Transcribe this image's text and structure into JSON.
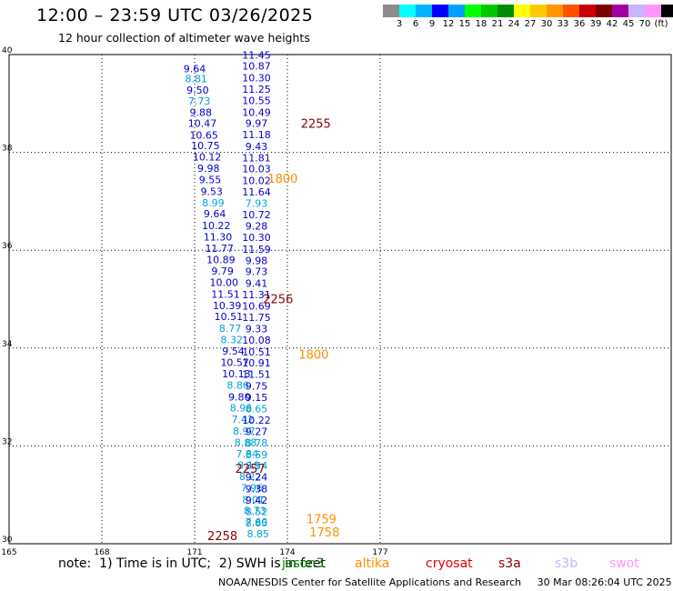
{
  "header": {
    "title": "12:00 – 23:59 UTC 03/26/2025",
    "subtitle": "12 hour collection of altimeter wave heights"
  },
  "legend": {
    "colors": [
      "#8c8c8c",
      "#00ffff",
      "#00b4ff",
      "#0000ff",
      "#00a0ff",
      "#00ff00",
      "#00c800",
      "#008c00",
      "#ffff00",
      "#ffc800",
      "#ff9600",
      "#ff5000",
      "#c80000",
      "#7d0000",
      "#a000a0",
      "#c8b4ff",
      "#ff96ff",
      "#000000"
    ],
    "labels": [
      "3",
      "6",
      "9",
      "12",
      "15",
      "18",
      "21",
      "24",
      "27",
      "30",
      "33",
      "36",
      "39",
      "42",
      "45",
      "70",
      "(ft)"
    ]
  },
  "map": {
    "lat_range": [
      30,
      40
    ],
    "lon_range": [
      165,
      178
    ],
    "lat_ticks": [
      "30",
      "32",
      "34",
      "36",
      "38",
      "40"
    ],
    "lon_ticks": [
      "165",
      "168",
      "171",
      "174",
      "177"
    ],
    "grid": "dotted"
  },
  "observations": [
    {
      "v": "9.64",
      "c": "#0000cc",
      "lon": 171.0,
      "lat": 39.64
    },
    {
      "v": "8.81",
      "c": "#00a0dc",
      "lon": 171.05,
      "lat": 39.43
    },
    {
      "v": "9.50",
      "c": "#0000cc",
      "lon": 171.1,
      "lat": 39.2
    },
    {
      "v": "7.73",
      "c": "#00a0dc",
      "lon": 171.15,
      "lat": 38.98
    },
    {
      "v": "9.88",
      "c": "#0000cc",
      "lon": 171.2,
      "lat": 38.75
    },
    {
      "v": "10.47",
      "c": "#0000cc",
      "lon": 171.25,
      "lat": 38.52
    },
    {
      "v": "10.65",
      "c": "#0000cc",
      "lon": 171.3,
      "lat": 38.28
    },
    {
      "v": "10.75",
      "c": "#0000cc",
      "lon": 171.35,
      "lat": 38.07
    },
    {
      "v": "10.12",
      "c": "#0000cc",
      "lon": 171.4,
      "lat": 37.83
    },
    {
      "v": "9.98",
      "c": "#0000cc",
      "lon": 171.45,
      "lat": 37.6
    },
    {
      "v": "9.55",
      "c": "#0000cc",
      "lon": 171.5,
      "lat": 37.37
    },
    {
      "v": "9.53",
      "c": "#0000cc",
      "lon": 171.55,
      "lat": 37.13
    },
    {
      "v": "8.99",
      "c": "#00a0dc",
      "lon": 171.6,
      "lat": 36.9
    },
    {
      "v": "9.64",
      "c": "#0000cc",
      "lon": 171.65,
      "lat": 36.67
    },
    {
      "v": "10.22",
      "c": "#0000cc",
      "lon": 171.7,
      "lat": 36.43
    },
    {
      "v": "11.30",
      "c": "#0000cc",
      "lon": 171.75,
      "lat": 36.2
    },
    {
      "v": "11.77",
      "c": "#0000cc",
      "lon": 171.8,
      "lat": 35.97
    },
    {
      "v": "10.89",
      "c": "#0000cc",
      "lon": 171.85,
      "lat": 35.73
    },
    {
      "v": "9.79",
      "c": "#0000cc",
      "lon": 171.9,
      "lat": 35.5
    },
    {
      "v": "10.00",
      "c": "#0000cc",
      "lon": 171.95,
      "lat": 35.27
    },
    {
      "v": "11.51",
      "c": "#0000cc",
      "lon": 172.0,
      "lat": 35.03
    },
    {
      "v": "10.39",
      "c": "#0000cc",
      "lon": 172.05,
      "lat": 34.8
    },
    {
      "v": "10.51",
      "c": "#0000cc",
      "lon": 172.1,
      "lat": 34.57
    },
    {
      "v": "8.77",
      "c": "#00a0dc",
      "lon": 172.15,
      "lat": 34.33
    },
    {
      "v": "8.32",
      "c": "#00a0dc",
      "lon": 172.2,
      "lat": 34.1
    },
    {
      "v": "9.54",
      "c": "#0000cc",
      "lon": 172.25,
      "lat": 33.87
    },
    {
      "v": "10.57",
      "c": "#0000cc",
      "lon": 172.3,
      "lat": 33.63
    },
    {
      "v": "10.13",
      "c": "#0000cc",
      "lon": 172.35,
      "lat": 33.4
    },
    {
      "v": "8.86",
      "c": "#00a0dc",
      "lon": 172.4,
      "lat": 33.17
    },
    {
      "v": "9.80",
      "c": "#0000cc",
      "lon": 172.45,
      "lat": 32.93
    },
    {
      "v": "8.96",
      "c": "#00a0dc",
      "lon": 172.5,
      "lat": 32.7
    },
    {
      "v": "7.42",
      "c": "#00a0dc",
      "lon": 172.55,
      "lat": 32.47
    },
    {
      "v": "8.97",
      "c": "#00a0dc",
      "lon": 172.6,
      "lat": 32.23
    },
    {
      "v": "8.88",
      "c": "#00a0dc",
      "lon": 172.65,
      "lat": 32.0
    },
    {
      "v": "7.84",
      "c": "#00a0dc",
      "lon": 172.7,
      "lat": 31.77
    },
    {
      "v": "8.19",
      "c": "#00a0dc",
      "lon": 172.75,
      "lat": 31.53
    },
    {
      "v": "8.22",
      "c": "#00a0dc",
      "lon": 172.8,
      "lat": 31.3
    },
    {
      "v": "7.96",
      "c": "#00a0dc",
      "lon": 172.85,
      "lat": 31.07
    },
    {
      "v": "8.01",
      "c": "#00a0dc",
      "lon": 172.9,
      "lat": 30.83
    },
    {
      "v": "8.73",
      "c": "#00a0dc",
      "lon": 172.95,
      "lat": 30.6
    },
    {
      "v": "7.60",
      "c": "#00a0dc",
      "lon": 173.0,
      "lat": 30.37
    },
    {
      "v": "8.85",
      "c": "#00a0dc",
      "lon": 173.05,
      "lat": 30.13
    },
    {
      "v": "11.45",
      "c": "#0000cc",
      "lon": 173.0,
      "lat": 39.92
    },
    {
      "v": "10.87",
      "c": "#0000cc",
      "lon": 173.0,
      "lat": 39.69
    },
    {
      "v": "10.30",
      "c": "#0000cc",
      "lon": 173.0,
      "lat": 39.45
    },
    {
      "v": "11.25",
      "c": "#0000cc",
      "lon": 173.0,
      "lat": 39.22
    },
    {
      "v": "10.55",
      "c": "#0000cc",
      "lon": 173.0,
      "lat": 38.99
    },
    {
      "v": "10.49",
      "c": "#0000cc",
      "lon": 173.0,
      "lat": 38.75
    },
    {
      "v": "9.97",
      "c": "#0000cc",
      "lon": 173.0,
      "lat": 38.52
    },
    {
      "v": "11.18",
      "c": "#0000cc",
      "lon": 173.0,
      "lat": 38.29
    },
    {
      "v": "9.43",
      "c": "#0000cc",
      "lon": 173.0,
      "lat": 38.05
    },
    {
      "v": "11.81",
      "c": "#0000cc",
      "lon": 173.0,
      "lat": 37.82
    },
    {
      "v": "10.03",
      "c": "#0000cc",
      "lon": 173.0,
      "lat": 37.59
    },
    {
      "v": "10.02",
      "c": "#0000cc",
      "lon": 173.0,
      "lat": 37.35
    },
    {
      "v": "11.64",
      "c": "#0000cc",
      "lon": 173.0,
      "lat": 37.12
    },
    {
      "v": "7.93",
      "c": "#00a0dc",
      "lon": 173.0,
      "lat": 36.89
    },
    {
      "v": "10.72",
      "c": "#0000cc",
      "lon": 173.0,
      "lat": 36.65
    },
    {
      "v": "9.28",
      "c": "#0000cc",
      "lon": 173.0,
      "lat": 36.42
    },
    {
      "v": "10.30",
      "c": "#0000cc",
      "lon": 173.0,
      "lat": 36.19
    },
    {
      "v": "11.59",
      "c": "#0000cc",
      "lon": 173.0,
      "lat": 35.95
    },
    {
      "v": "9.98",
      "c": "#0000cc",
      "lon": 173.0,
      "lat": 35.72
    },
    {
      "v": "9.73",
      "c": "#0000cc",
      "lon": 173.0,
      "lat": 35.49
    },
    {
      "v": "9.41",
      "c": "#0000cc",
      "lon": 173.0,
      "lat": 35.25
    },
    {
      "v": "11.31",
      "c": "#0000cc",
      "lon": 173.0,
      "lat": 35.02
    },
    {
      "v": "10.69",
      "c": "#0000cc",
      "lon": 173.0,
      "lat": 34.79
    },
    {
      "v": "11.75",
      "c": "#0000cc",
      "lon": 173.0,
      "lat": 34.55
    },
    {
      "v": "9.33",
      "c": "#0000cc",
      "lon": 173.0,
      "lat": 34.32
    },
    {
      "v": "10.08",
      "c": "#0000cc",
      "lon": 173.0,
      "lat": 34.09
    },
    {
      "v": "10.51",
      "c": "#0000cc",
      "lon": 173.0,
      "lat": 33.85
    },
    {
      "v": "10.91",
      "c": "#0000cc",
      "lon": 173.0,
      "lat": 33.62
    },
    {
      "v": "11.51",
      "c": "#0000cc",
      "lon": 173.0,
      "lat": 33.39
    },
    {
      "v": "9.75",
      "c": "#0000cc",
      "lon": 173.0,
      "lat": 33.15
    },
    {
      "v": "9.15",
      "c": "#0000cc",
      "lon": 173.0,
      "lat": 32.92
    },
    {
      "v": "8.65",
      "c": "#00a0dc",
      "lon": 173.0,
      "lat": 32.69
    },
    {
      "v": "10.22",
      "c": "#0000cc",
      "lon": 173.0,
      "lat": 32.45
    },
    {
      "v": "9.27",
      "c": "#0000cc",
      "lon": 173.0,
      "lat": 32.22
    },
    {
      "v": "8.78",
      "c": "#00a0dc",
      "lon": 173.0,
      "lat": 31.99
    },
    {
      "v": "8.59",
      "c": "#00a0dc",
      "lon": 173.0,
      "lat": 31.75
    },
    {
      "v": "8.54",
      "c": "#00a0dc",
      "lon": 173.0,
      "lat": 31.52
    },
    {
      "v": "9.24",
      "c": "#0000cc",
      "lon": 173.0,
      "lat": 31.29
    },
    {
      "v": "9.38",
      "c": "#0000cc",
      "lon": 173.0,
      "lat": 31.05
    },
    {
      "v": "9.42",
      "c": "#0000cc",
      "lon": 173.0,
      "lat": 30.82
    },
    {
      "v": "8.52",
      "c": "#00a0dc",
      "lon": 173.0,
      "lat": 30.59
    },
    {
      "v": "8.85",
      "c": "#00a0dc",
      "lon": 173.0,
      "lat": 30.35
    }
  ],
  "time_labels": [
    {
      "t": "2255",
      "c": "#8b0000",
      "lon": 174.92,
      "lat": 38.5
    },
    {
      "t": "1800",
      "c": "#ff8c00",
      "lon": 173.85,
      "lat": 37.38
    },
    {
      "t": "2256",
      "c": "#8b0000",
      "lon": 173.7,
      "lat": 34.92
    },
    {
      "t": "1800",
      "c": "#ff8c00",
      "lon": 174.85,
      "lat": 33.78
    },
    {
      "t": "2257",
      "c": "#8b0000",
      "lon": 172.8,
      "lat": 31.45
    },
    {
      "t": "1759",
      "c": "#ff8c00",
      "lon": 175.1,
      "lat": 30.42
    },
    {
      "t": "1758",
      "c": "#ff8c00",
      "lon": 175.2,
      "lat": 30.15
    },
    {
      "t": "2258",
      "c": "#8b0000",
      "lon": 171.9,
      "lat": 30.07
    }
  ],
  "footer": {
    "note": "note:  1) Time is in UTC;  2) SWH is in feet",
    "satellites": [
      {
        "name": "jason3",
        "color": "#008c00"
      },
      {
        "name": "altika",
        "color": "#ff8c00"
      },
      {
        "name": "cryosat",
        "color": "#e60000"
      },
      {
        "name": "s3a",
        "color": "#8b0000"
      },
      {
        "name": "s3b",
        "color": "#c8b4ff"
      },
      {
        "name": "swot",
        "color": "#ff96ff"
      }
    ],
    "credit": "NOAA/NESDIS Center for Satellite Applications and Research     30 Mar 08:26:04 UTC 2025"
  }
}
